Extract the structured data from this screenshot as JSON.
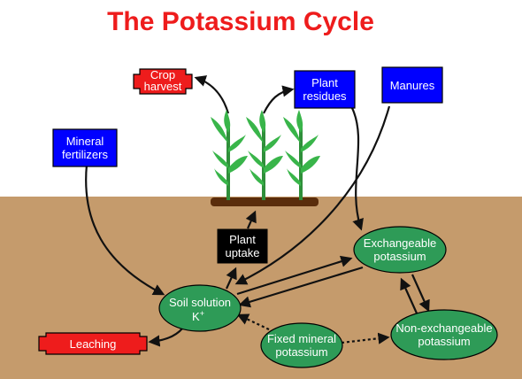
{
  "title": "The Potassium Cycle",
  "colors": {
    "title": "#ee1c1c",
    "soil": "#c59b6c",
    "blue_box": "#0000ff",
    "red_box": "#ee1c1c",
    "green_ellipse": "#2e9b57",
    "black_box": "#000000",
    "plant": "#39b54a",
    "arrow": "#111111"
  },
  "nodes": {
    "crop_harvest": [
      "Crop",
      "harvest"
    ],
    "plant_residues": [
      "Plant",
      "residues"
    ],
    "manures": [
      "Manures"
    ],
    "mineral_fertilizers": [
      "Mineral",
      "fertilizers"
    ],
    "plant_uptake": [
      "Plant",
      "uptake"
    ],
    "exchangeable_potassium": [
      "Exchangeable",
      "potassium"
    ],
    "soil_solution": [
      "Soil solution",
      "K",
      "+"
    ],
    "fixed_mineral_potassium": [
      "Fixed mineral",
      "potassium"
    ],
    "non_exchangeable_potassium": [
      "Non-exchangeable",
      "potassium"
    ],
    "leaching": [
      "Leaching"
    ]
  }
}
